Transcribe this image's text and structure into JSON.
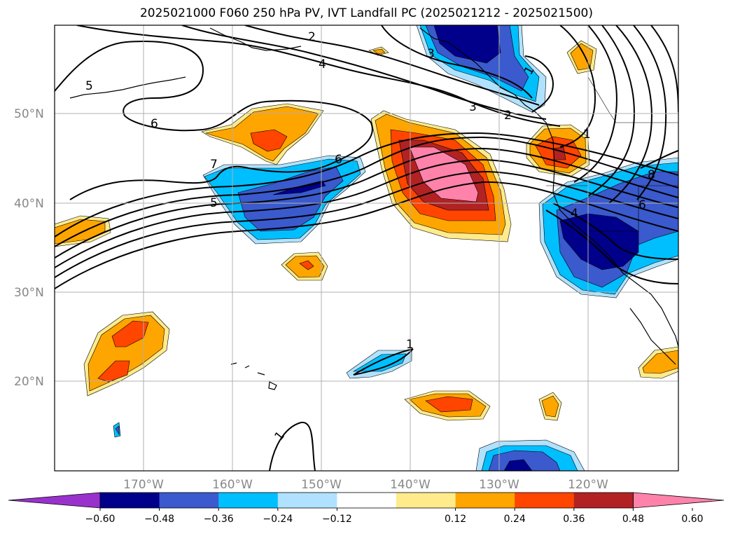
{
  "title": "2025021000 F060 250 hPa PV, IVT Landfall PC (2025021212 - 2025021500)",
  "map": {
    "lon_labels": [
      "170°W",
      "160°W",
      "150°W",
      "140°W",
      "130°W",
      "120°W"
    ],
    "lat_labels": [
      "50°N",
      "40°N",
      "30°N",
      "20°N"
    ],
    "contour_labels": [
      "1",
      "2",
      "3",
      "4",
      "5",
      "5",
      "6",
      "6",
      "6",
      "7",
      "1",
      "1",
      "2",
      "3",
      "4",
      "8",
      "1"
    ]
  },
  "colorbar": {
    "tick_labels": [
      "−0.60",
      "−0.48",
      "−0.36",
      "−0.24",
      "−0.12",
      "0.12",
      "0.24",
      "0.36",
      "0.48",
      "0.60"
    ],
    "colors": [
      "#9932cc",
      "#00008b",
      "#3a5acd",
      "#00bfff",
      "#b0e2ff",
      "#ffffff",
      "#ffeb8c",
      "#ffa500",
      "#ff4500",
      "#b22222",
      "#ff82ab"
    ]
  },
  "colors": {
    "low_over": "#9932cc",
    "high_over": "#ff82ab",
    "grid": "#b0b0b0",
    "land_line": "#000000"
  }
}
